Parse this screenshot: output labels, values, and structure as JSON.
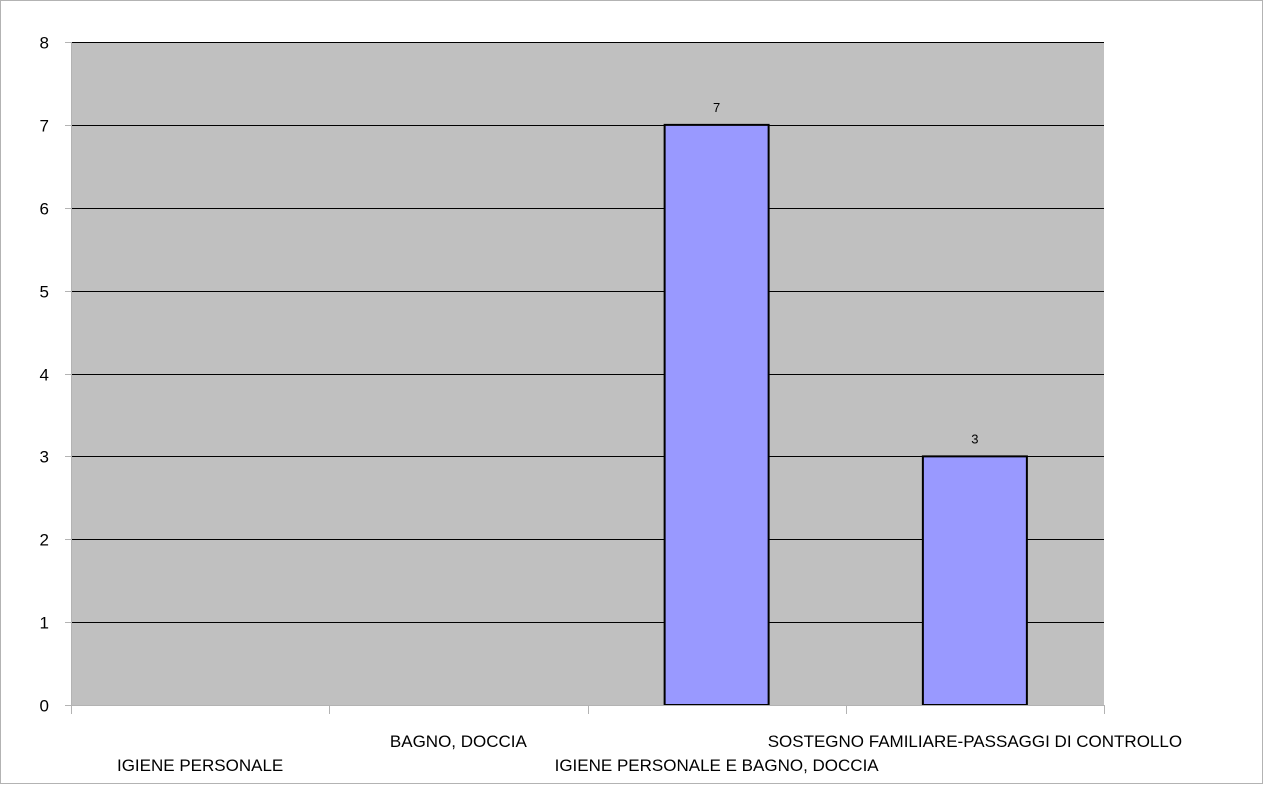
{
  "chart_data": {
    "type": "bar",
    "categories": [
      "IGIENE PERSONALE",
      "BAGNO, DOCCIA",
      "IGIENE PERSONALE E BAGNO, DOCCIA",
      "SOSTEGNO FAMILIARE-PASSAGGI DI CONTROLLO"
    ],
    "values": [
      0,
      0,
      7,
      3
    ],
    "data_labels": [
      "",
      "",
      "7",
      "3"
    ],
    "title": "",
    "xlabel": "",
    "ylabel": "",
    "ylim": [
      0,
      8
    ],
    "yticks": [
      "0",
      "1",
      "2",
      "3",
      "4",
      "5",
      "6",
      "7",
      "8"
    ],
    "grid": true,
    "legend": "none",
    "colors": {
      "bar_fill": "#9999ff",
      "bar_stroke": "#000000",
      "plot_background": "#c0c0c0",
      "grid": "#000000"
    }
  }
}
